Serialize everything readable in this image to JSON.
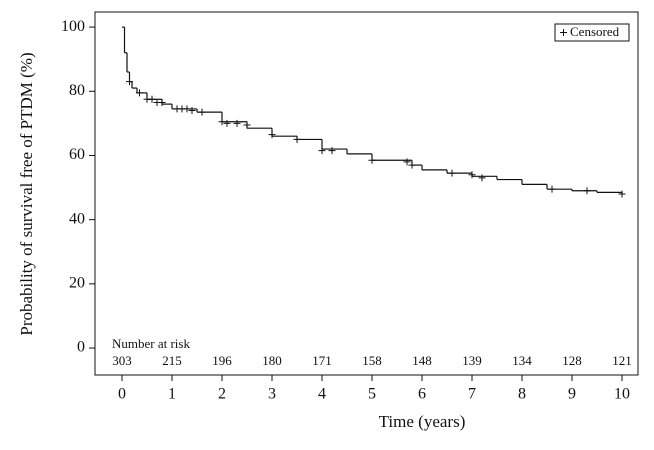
{
  "chart_data": {
    "type": "step",
    "step": "post",
    "x_label": "Time (years)",
    "y_label": "Probability of survival free of PTDM (%)",
    "x": [
      0,
      0.05,
      0.1,
      0.15,
      0.2,
      0.3,
      0.5,
      0.8,
      1.0,
      1.5,
      2.0,
      2.5,
      3.0,
      3.5,
      4.0,
      4.5,
      5.0,
      5.8,
      6.0,
      6.5,
      7.0,
      7.5,
      8.0,
      8.5,
      9.0,
      9.5,
      10.0
    ],
    "y": [
      100,
      92,
      86,
      83,
      81,
      79.5,
      77.5,
      76,
      74.5,
      73.5,
      70.5,
      68.5,
      66,
      65,
      62,
      60.5,
      58.5,
      57,
      55.5,
      54.5,
      53.5,
      52.5,
      51,
      49.5,
      49,
      48.5,
      48
    ],
    "color": "#111111",
    "censored": {
      "name": "Censored",
      "x": [
        0.15,
        0.35,
        0.5,
        0.6,
        0.7,
        0.8,
        1.1,
        1.2,
        1.3,
        1.4,
        1.6,
        2.0,
        2.1,
        2.3,
        2.5,
        3.0,
        3.5,
        4.0,
        4.2,
        5.0,
        5.7,
        5.8,
        6.6,
        7.0,
        7.2,
        8.6,
        9.3,
        10.0
      ],
      "y": [
        83,
        79.5,
        77.5,
        77.5,
        76.5,
        76.5,
        74.5,
        74.5,
        74.5,
        74,
        73.5,
        70.5,
        70,
        70,
        69.5,
        66.5,
        65,
        61.5,
        61.5,
        58.5,
        58,
        57,
        54.5,
        54,
        53,
        49.5,
        49,
        48
      ]
    },
    "legend_position": "upper right",
    "risk_table": {
      "title": "Number at risk",
      "values": [
        303,
        215,
        196,
        180,
        171,
        158,
        148,
        139,
        134,
        128,
        121
      ]
    },
    "xlim": [
      -0.54,
      10.32
    ],
    "ylim": [
      -8.4,
      104.7
    ],
    "xticks": [
      0,
      1,
      2,
      3,
      4,
      5,
      6,
      7,
      8,
      9,
      10
    ],
    "yticks": [
      0,
      20,
      40,
      60,
      80,
      100
    ]
  }
}
